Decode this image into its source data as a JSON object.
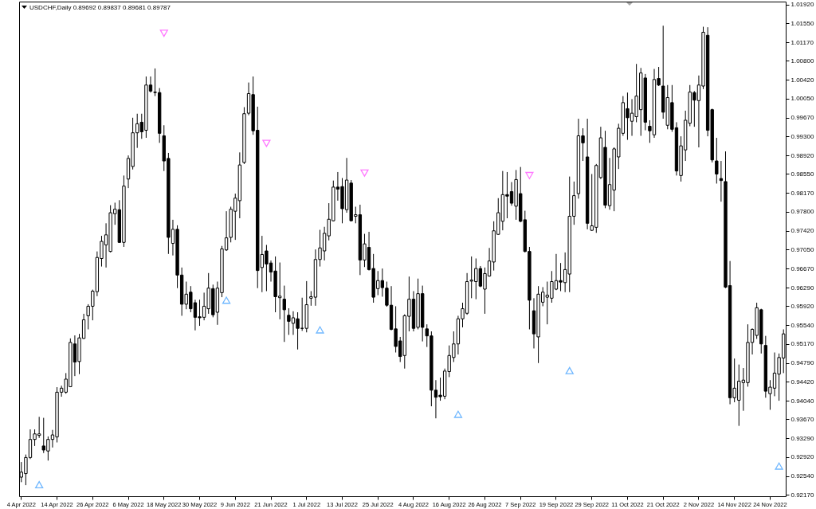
{
  "chart_data": {
    "type": "candlestick",
    "title": "USDCHF,Daily 0.89692 0.89837 0.89681 0.89787",
    "color": "#000000",
    "categories": [
      "4 Apr 2022",
      null,
      null,
      null,
      null,
      null,
      null,
      null,
      "14 Apr 2022",
      null,
      null,
      null,
      null,
      null,
      null,
      null,
      "26 Apr 2022",
      null,
      null,
      null,
      null,
      null,
      null,
      null,
      "6 May 2022",
      null,
      null,
      null,
      null,
      null,
      null,
      null,
      "18 May 2022",
      null,
      null,
      null,
      null,
      null,
      null,
      null,
      "30 May 2022",
      null,
      null,
      null,
      null,
      null,
      null,
      null,
      "9 Jun 2022",
      null,
      null,
      null,
      null,
      null,
      null,
      null,
      "21 Jun 2022",
      null,
      null,
      null,
      null,
      null,
      null,
      null,
      "1 Jul 2022",
      null,
      null,
      null,
      null,
      null,
      null,
      null,
      "13 Jul 2022",
      null,
      null,
      null,
      null,
      null,
      null,
      null,
      "25 Jul 2022",
      null,
      null,
      null,
      null,
      null,
      null,
      null,
      "4 Aug 2022",
      null,
      null,
      null,
      null,
      null,
      null,
      null,
      "16 Aug 2022",
      null,
      null,
      null,
      null,
      null,
      null,
      null,
      "26 Aug 2022",
      null,
      null,
      null,
      null,
      null,
      null,
      null,
      "7 Sep 2022",
      null,
      null,
      null,
      null,
      null,
      null,
      null,
      "19 Sep 2022",
      null,
      null,
      null,
      null,
      null,
      null,
      null,
      "29 Sep 2022",
      null,
      null,
      null,
      null,
      null,
      null,
      null,
      "11 Oct 2022",
      null,
      null,
      null,
      null,
      null,
      null,
      null,
      "21 Oct 2022",
      null,
      null,
      null,
      null,
      null,
      null,
      null,
      "2 Nov 2022",
      null,
      null,
      null,
      null,
      null,
      null,
      null,
      "14 Nov 2022",
      null,
      null,
      null,
      null,
      null,
      null,
      null,
      "24 Nov 2022",
      null,
      null,
      null
    ],
    "ohlc": [
      [
        0.9252,
        0.9282,
        0.9242,
        0.9262
      ],
      [
        0.9259,
        0.9297,
        0.9236,
        0.9291
      ],
      [
        0.9291,
        0.9347,
        0.9288,
        0.9327
      ],
      [
        0.9327,
        0.9347,
        0.9314,
        0.9338
      ],
      [
        0.9335,
        0.9372,
        0.933,
        0.9338
      ],
      [
        0.9314,
        0.937,
        0.93,
        0.9306
      ],
      [
        0.9304,
        0.9333,
        0.9285,
        0.9327
      ],
      [
        0.9327,
        0.9346,
        0.9311,
        0.9336
      ],
      [
        0.9332,
        0.9431,
        0.9321,
        0.9421
      ],
      [
        0.9421,
        0.9434,
        0.9412,
        0.9429
      ],
      [
        0.9421,
        0.9459,
        0.9418,
        0.9447
      ],
      [
        0.9432,
        0.9528,
        0.9431,
        0.952
      ],
      [
        0.9517,
        0.9534,
        0.9453,
        0.9481
      ],
      [
        0.9482,
        0.9537,
        0.9457,
        0.9529
      ],
      [
        0.9528,
        0.9577,
        0.9527,
        0.9565
      ],
      [
        0.9573,
        0.9596,
        0.9546,
        0.9592
      ],
      [
        0.9592,
        0.9625,
        0.9564,
        0.9622
      ],
      [
        0.9621,
        0.9701,
        0.9612,
        0.9689
      ],
      [
        0.9687,
        0.9732,
        0.9671,
        0.9721
      ],
      [
        0.9714,
        0.9757,
        0.9669,
        0.9734
      ],
      [
        0.9701,
        0.9793,
        0.9699,
        0.9778
      ],
      [
        0.9776,
        0.9798,
        0.9754,
        0.9785
      ],
      [
        0.9784,
        0.9803,
        0.9718,
        0.9719
      ],
      [
        0.9719,
        0.9852,
        0.971,
        0.9831
      ],
      [
        0.9845,
        0.9892,
        0.9827,
        0.9886
      ],
      [
        0.987,
        0.9967,
        0.9864,
        0.9937
      ],
      [
        0.9937,
        0.9975,
        0.9907,
        0.9955
      ],
      [
        0.9958,
        0.9975,
        0.9925,
        0.9939
      ],
      [
        0.9942,
        1.0049,
        0.9927,
        1.0032
      ],
      [
        1.0032,
        1.0049,
        1.0017,
        1.002
      ],
      [
        1.0017,
        1.0065,
        1.001,
        1.0018
      ],
      [
        1.0017,
        1.0026,
        0.9917,
        0.9936
      ],
      [
        0.9931,
        0.9952,
        0.9861,
        0.9881
      ],
      [
        0.9886,
        0.9897,
        0.9696,
        0.9729
      ],
      [
        0.9717,
        0.9764,
        0.9693,
        0.9745
      ],
      [
        0.9745,
        0.9753,
        0.9628,
        0.9654
      ],
      [
        0.9654,
        0.9669,
        0.9573,
        0.9596
      ],
      [
        0.9596,
        0.9641,
        0.9586,
        0.9616
      ],
      [
        0.962,
        0.9632,
        0.958,
        0.9587
      ],
      [
        0.9599,
        0.9605,
        0.9544,
        0.957
      ],
      [
        0.9571,
        0.9605,
        0.9553,
        0.9569
      ],
      [
        0.957,
        0.9619,
        0.9564,
        0.9592
      ],
      [
        0.9587,
        0.9658,
        0.9577,
        0.9628
      ],
      [
        0.9627,
        0.9635,
        0.957,
        0.9575
      ],
      [
        0.958,
        0.9641,
        0.9555,
        0.9628
      ],
      [
        0.9619,
        0.9712,
        0.961,
        0.9706
      ],
      [
        0.9704,
        0.9781,
        0.9702,
        0.9728
      ],
      [
        0.9729,
        0.979,
        0.9719,
        0.9785
      ],
      [
        0.9781,
        0.9816,
        0.9724,
        0.9807
      ],
      [
        0.9802,
        0.9898,
        0.9767,
        0.9873
      ],
      [
        0.9878,
        0.9988,
        0.9875,
        0.9975
      ],
      [
        0.9976,
        1.0037,
        0.9972,
        1.0015
      ],
      [
        1.0013,
        1.0049,
        0.9933,
        0.9941
      ],
      [
        0.9942,
        0.9989,
        0.9628,
        0.9663
      ],
      [
        0.9669,
        0.9732,
        0.962,
        0.9695
      ],
      [
        0.9702,
        0.9714,
        0.9622,
        0.9676
      ],
      [
        0.9678,
        0.9683,
        0.9641,
        0.966
      ],
      [
        0.9662,
        0.9691,
        0.958,
        0.9611
      ],
      [
        0.9609,
        0.9679,
        0.9566,
        0.9612
      ],
      [
        0.9606,
        0.9633,
        0.9521,
        0.9585
      ],
      [
        0.9574,
        0.9588,
        0.9535,
        0.9562
      ],
      [
        0.9558,
        0.9582,
        0.9535,
        0.9569
      ],
      [
        0.9567,
        0.958,
        0.9506,
        0.9548
      ],
      [
        0.9548,
        0.9609,
        0.9543,
        0.9548
      ],
      [
        0.9548,
        0.9642,
        0.954,
        0.9595
      ],
      [
        0.9608,
        0.9622,
        0.9593,
        0.9611
      ],
      [
        0.961,
        0.9705,
        0.9593,
        0.9685
      ],
      [
        0.9685,
        0.9744,
        0.9671,
        0.9708
      ],
      [
        0.9702,
        0.975,
        0.9683,
        0.9737
      ],
      [
        0.9732,
        0.9797,
        0.9723,
        0.9765
      ],
      [
        0.9762,
        0.9842,
        0.9761,
        0.9829
      ],
      [
        0.9829,
        0.9859,
        0.9802,
        0.9825
      ],
      [
        0.983,
        0.9847,
        0.9757,
        0.9786
      ],
      [
        0.9784,
        0.9887,
        0.9778,
        0.9843
      ],
      [
        0.9837,
        0.9843,
        0.9761,
        0.9762
      ],
      [
        0.9771,
        0.979,
        0.9757,
        0.9774
      ],
      [
        0.9774,
        0.9794,
        0.9654,
        0.9684
      ],
      [
        0.9684,
        0.9736,
        0.967,
        0.9716
      ],
      [
        0.9709,
        0.974,
        0.9663,
        0.9665
      ],
      [
        0.9667,
        0.9696,
        0.9599,
        0.961
      ],
      [
        0.9627,
        0.9662,
        0.9614,
        0.9643
      ],
      [
        0.9643,
        0.9667,
        0.9611,
        0.9629
      ],
      [
        0.9628,
        0.9641,
        0.9591,
        0.9594
      ],
      [
        0.9594,
        0.9632,
        0.9544,
        0.9546
      ],
      [
        0.9547,
        0.9592,
        0.95,
        0.9512
      ],
      [
        0.9523,
        0.9531,
        0.9481,
        0.9492
      ],
      [
        0.9494,
        0.9576,
        0.9468,
        0.9573
      ],
      [
        0.9572,
        0.9651,
        0.9542,
        0.9606
      ],
      [
        0.9606,
        0.9622,
        0.9542,
        0.9548
      ],
      [
        0.955,
        0.9647,
        0.9546,
        0.9617
      ],
      [
        0.9617,
        0.9633,
        0.9522,
        0.955
      ],
      [
        0.9547,
        0.9556,
        0.9511,
        0.9533
      ],
      [
        0.9533,
        0.9542,
        0.9393,
        0.9425
      ],
      [
        0.9425,
        0.9445,
        0.9369,
        0.9411
      ],
      [
        0.9415,
        0.945,
        0.9404,
        0.9412
      ],
      [
        0.9413,
        0.9468,
        0.9407,
        0.9463
      ],
      [
        0.9462,
        0.9514,
        0.9451,
        0.9494
      ],
      [
        0.949,
        0.9542,
        0.9481,
        0.9517
      ],
      [
        0.9517,
        0.9573,
        0.9496,
        0.9567
      ],
      [
        0.9567,
        0.9599,
        0.955,
        0.9587
      ],
      [
        0.9578,
        0.9658,
        0.9575,
        0.9641
      ],
      [
        0.9642,
        0.9691,
        0.9608,
        0.9644
      ],
      [
        0.9641,
        0.9687,
        0.9606,
        0.9667
      ],
      [
        0.9667,
        0.9672,
        0.963,
        0.9632
      ],
      [
        0.9626,
        0.9669,
        0.9577,
        0.9657
      ],
      [
        0.9652,
        0.9708,
        0.9651,
        0.9682
      ],
      [
        0.968,
        0.9761,
        0.9663,
        0.9742
      ],
      [
        0.9735,
        0.9807,
        0.9734,
        0.9778
      ],
      [
        0.9761,
        0.9861,
        0.9743,
        0.9814
      ],
      [
        0.9814,
        0.9859,
        0.9767,
        0.9811
      ],
      [
        0.982,
        0.9839,
        0.9792,
        0.9797
      ],
      [
        0.9791,
        0.9863,
        0.9764,
        0.9844
      ],
      [
        0.9816,
        0.9869,
        0.9759,
        0.9761
      ],
      [
        0.9764,
        0.9782,
        0.9699,
        0.9701
      ],
      [
        0.9701,
        0.971,
        0.9546,
        0.9604
      ],
      [
        0.9583,
        0.9608,
        0.9508,
        0.9537
      ],
      [
        0.9531,
        0.9632,
        0.9479,
        0.9616
      ],
      [
        0.96,
        0.963,
        0.9592,
        0.962
      ],
      [
        0.961,
        0.9641,
        0.9556,
        0.9614
      ],
      [
        0.9608,
        0.9662,
        0.9599,
        0.9641
      ],
      [
        0.9626,
        0.9696,
        0.9624,
        0.9643
      ],
      [
        0.9643,
        0.9678,
        0.9622,
        0.964
      ],
      [
        0.9639,
        0.9699,
        0.962,
        0.9665
      ],
      [
        0.9656,
        0.985,
        0.962,
        0.9771
      ],
      [
        0.9771,
        0.984,
        0.9754,
        0.9812
      ],
      [
        0.9816,
        0.9965,
        0.9806,
        0.9931
      ],
      [
        0.9931,
        0.9946,
        0.9881,
        0.9917
      ],
      [
        0.9889,
        0.9965,
        0.9745,
        0.9757
      ],
      [
        0.9743,
        0.9855,
        0.9742,
        0.9752
      ],
      [
        0.9749,
        0.9875,
        0.9738,
        0.9872
      ],
      [
        0.9848,
        0.9949,
        0.9845,
        0.9927
      ],
      [
        0.9908,
        0.9941,
        0.9787,
        0.9793
      ],
      [
        0.9792,
        0.9887,
        0.9784,
        0.9834
      ],
      [
        0.9823,
        0.9908,
        0.9781,
        0.9905
      ],
      [
        0.9889,
        0.9955,
        0.9865,
        0.9946
      ],
      [
        0.9936,
        1.001,
        0.9931,
        0.9997
      ],
      [
        0.9985,
        1.0017,
        0.9923,
        0.9967
      ],
      [
        0.996,
        1.0004,
        0.9931,
        0.9976
      ],
      [
        0.9969,
        1.0074,
        0.9958,
        1.001
      ],
      [
        0.9983,
        1.0066,
        0.9931,
        1.0056
      ],
      [
        1.0046,
        1.0054,
        0.9942,
        0.9958
      ],
      [
        0.995,
        0.9962,
        0.9917,
        0.9941
      ],
      [
        0.9933,
        1.0064,
        0.9927,
        1.0043
      ],
      [
        1.0045,
        1.0068,
        1.003,
        1.0032
      ],
      [
        1.003,
        1.015,
        0.9965,
        0.9978
      ],
      [
        0.9952,
        1.0032,
        0.9944,
        1.0007
      ],
      [
        0.9997,
        1.0032,
        0.9939,
        0.9944
      ],
      [
        0.9947,
        0.9958,
        0.9852,
        0.9861
      ],
      [
        0.9852,
        0.993,
        0.984,
        0.9911
      ],
      [
        0.9903,
        0.9981,
        0.9881,
        0.9962
      ],
      [
        0.9956,
        1.0032,
        0.995,
        1.0018
      ],
      [
        1.0017,
        1.002,
        0.9949,
        1.0002
      ],
      [
        1.0001,
        1.0051,
        0.9908,
        1.0032
      ],
      [
        1.003,
        1.0148,
        1.0024,
        1.0137
      ],
      [
        1.0131,
        1.0147,
        0.993,
        0.9942
      ],
      [
        0.9983,
        0.9985,
        0.9878,
        0.9883
      ],
      [
        0.9881,
        0.9927,
        0.9836,
        0.9855
      ],
      [
        0.9846,
        0.9881,
        0.98,
        0.9842
      ],
      [
        0.984,
        0.99,
        0.9628,
        0.963
      ],
      [
        0.9633,
        0.9682,
        0.9397,
        0.941
      ],
      [
        0.941,
        0.9488,
        0.9401,
        0.9429
      ],
      [
        0.9405,
        0.9476,
        0.9354,
        0.9443
      ],
      [
        0.944,
        0.9469,
        0.9384,
        0.9445
      ],
      [
        0.944,
        0.9556,
        0.9432,
        0.952
      ],
      [
        0.952,
        0.9548,
        0.9496,
        0.9546
      ],
      [
        0.9534,
        0.9599,
        0.9527,
        0.9589
      ],
      [
        0.9585,
        0.9587,
        0.9498,
        0.9517
      ],
      [
        0.9514,
        0.9533,
        0.941,
        0.9423
      ],
      [
        0.9418,
        0.9445,
        0.9386,
        0.9431
      ],
      [
        0.9429,
        0.95,
        0.9413,
        0.9459
      ],
      [
        0.9457,
        0.9498,
        0.9404,
        0.949
      ],
      [
        0.9489,
        0.9546,
        0.9459,
        0.9537
      ]
    ],
    "ylim": [
      0.9214,
      1.0198
    ],
    "yticks": [
      {
        "value": 1.0192,
        "label": "1.01920"
      },
      {
        "value": 1.0155,
        "label": "1.01550"
      },
      {
        "value": 1.0117,
        "label": "1.01170"
      },
      {
        "value": 1.008,
        "label": "1.00800"
      },
      {
        "value": 1.0042,
        "label": "1.00420"
      },
      {
        "value": 1.0005,
        "label": "1.00050"
      },
      {
        "value": 0.9967,
        "label": "0.99670"
      },
      {
        "value": 0.993,
        "label": "0.99300"
      },
      {
        "value": 0.9892,
        "label": "0.98920"
      },
      {
        "value": 0.9855,
        "label": "0.98550"
      },
      {
        "value": 0.9817,
        "label": "0.98170"
      },
      {
        "value": 0.978,
        "label": "0.97800"
      },
      {
        "value": 0.9742,
        "label": "0.97420"
      },
      {
        "value": 0.9705,
        "label": "0.97050"
      },
      {
        "value": 0.9667,
        "label": "0.96670"
      },
      {
        "value": 0.9629,
        "label": "0.96290"
      },
      {
        "value": 0.9592,
        "label": "0.95920"
      },
      {
        "value": 0.9554,
        "label": "0.95540"
      },
      {
        "value": 0.9517,
        "label": "0.95170"
      },
      {
        "value": 0.9479,
        "label": "0.94790"
      },
      {
        "value": 0.9442,
        "label": "0.94420"
      },
      {
        "value": 0.9404,
        "label": "0.94040"
      },
      {
        "value": 0.9367,
        "label": "0.93670"
      },
      {
        "value": 0.9329,
        "label": "0.93290"
      },
      {
        "value": 0.9292,
        "label": "0.92920"
      },
      {
        "value": 0.9254,
        "label": "0.92540"
      },
      {
        "value": 0.9217,
        "label": "0.92170"
      }
    ],
    "marker": "triangle",
    "series": [
      {
        "type": "scatter",
        "color": "#ff40ff",
        "values": [
          null,
          null,
          null,
          null,
          null,
          null,
          null,
          null,
          null,
          null,
          null,
          null,
          null,
          null,
          null,
          null,
          null,
          null,
          null,
          null,
          null,
          null,
          null,
          null,
          null,
          null,
          null,
          null,
          null,
          null,
          null,
          null,
          1.0135,
          null,
          null,
          null,
          null,
          null,
          null,
          null,
          null,
          null,
          null,
          null,
          null,
          null,
          null,
          null,
          null,
          null,
          null,
          null,
          null,
          null,
          null,
          0.9916,
          null,
          null,
          null,
          null,
          null,
          null,
          null,
          null,
          null,
          null,
          null,
          null,
          null,
          null,
          null,
          null,
          null,
          null,
          null,
          null,
          null,
          0.9857,
          null,
          null,
          null,
          null,
          null,
          null,
          null,
          null,
          null,
          null,
          null,
          null,
          null,
          null,
          null,
          null,
          null,
          null,
          null,
          null,
          null,
          null,
          null,
          null,
          null,
          null,
          null,
          null,
          null,
          null,
          null,
          null,
          null,
          null,
          null,
          null,
          0.9852,
          null,
          null,
          null,
          null,
          null,
          null,
          null,
          null,
          null,
          null,
          null,
          null,
          null,
          null,
          null,
          null,
          null,
          null,
          null,
          null,
          null,
          null,
          null,
          null,
          null,
          null,
          null,
          null,
          null,
          null,
          null,
          null,
          null,
          null,
          null,
          null,
          null,
          null,
          null,
          null,
          null,
          null,
          null,
          null,
          null,
          null,
          null,
          null,
          null,
          null,
          null,
          null,
          null,
          null,
          null,
          null,
          null
        ]
      },
      {
        "type": "scatter",
        "color": "#3399ff",
        "values": [
          null,
          null,
          null,
          null,
          0.9237,
          null,
          null,
          null,
          null,
          null,
          null,
          null,
          null,
          null,
          null,
          null,
          null,
          null,
          null,
          null,
          null,
          null,
          null,
          null,
          null,
          null,
          null,
          null,
          null,
          null,
          null,
          null,
          null,
          null,
          null,
          null,
          null,
          null,
          null,
          null,
          null,
          null,
          null,
          null,
          null,
          null,
          0.9604,
          null,
          null,
          null,
          null,
          null,
          null,
          null,
          null,
          null,
          null,
          null,
          null,
          null,
          null,
          null,
          null,
          null,
          null,
          null,
          null,
          0.9545,
          null,
          null,
          null,
          null,
          null,
          null,
          null,
          null,
          null,
          null,
          null,
          null,
          null,
          null,
          null,
          null,
          null,
          null,
          null,
          null,
          null,
          null,
          null,
          null,
          null,
          null,
          null,
          null,
          null,
          null,
          0.9377,
          null,
          null,
          null,
          null,
          null,
          null,
          null,
          null,
          null,
          null,
          null,
          null,
          null,
          null,
          null,
          null,
          null,
          null,
          null,
          null,
          null,
          null,
          null,
          null,
          0.9464,
          null,
          null,
          null,
          null,
          null,
          null,
          null,
          null,
          null,
          null,
          null,
          null,
          null,
          null,
          null,
          null,
          null,
          null,
          null,
          null,
          null,
          null,
          null,
          null,
          null,
          null,
          null,
          null,
          null,
          null,
          null,
          null,
          null,
          null,
          null,
          null,
          null,
          null,
          null,
          null,
          null,
          null,
          null,
          null,
          null,
          null,
          0.9274,
          null
        ]
      }
    ]
  }
}
